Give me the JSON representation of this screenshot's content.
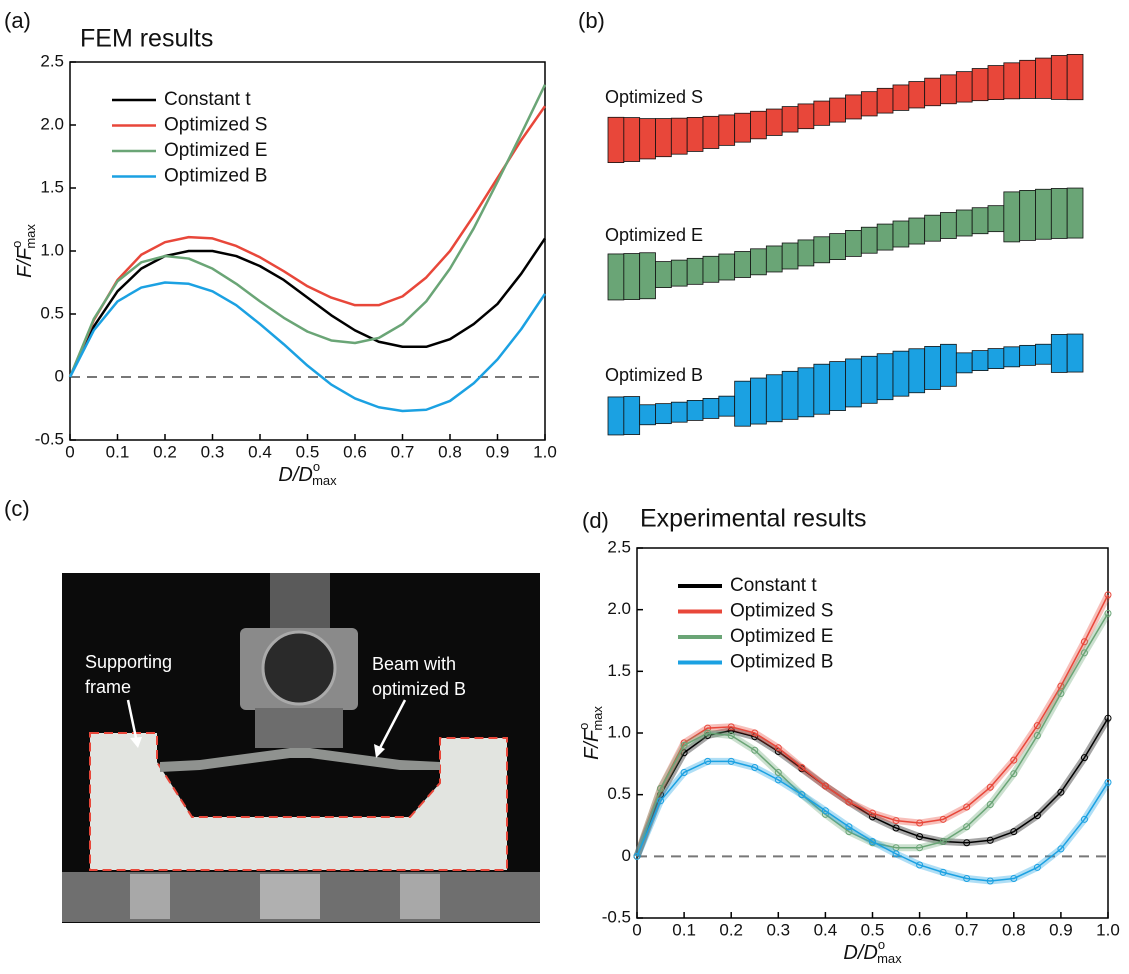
{
  "panels": {
    "labels": [
      "(a)",
      "(b)",
      "(c)",
      "(d)"
    ]
  },
  "beam_diagram": {
    "labels": [
      "Optimized S",
      "Optimized E",
      "Optimized B"
    ]
  },
  "photo": {
    "frame_label": [
      "Supporting",
      "frame"
    ],
    "beam_label": [
      "Beam with",
      "optimized B"
    ]
  },
  "chart_data": [
    {
      "type": "line",
      "title": "FEM results",
      "xlabel": {
        "main": "D/D",
        "sup": "o",
        "sub": "max"
      },
      "ylabel": {
        "main": "F/F",
        "sup": "o",
        "sub": "max"
      },
      "xlim": [
        0,
        1
      ],
      "ylim": [
        -0.5,
        2.5
      ],
      "xticks": [
        0,
        0.1,
        0.2,
        0.3,
        0.4,
        0.5,
        0.6,
        0.7,
        0.8,
        0.9,
        {
          "value": 1,
          "label": "1.0"
        }
      ],
      "yticks": [
        -0.5,
        0,
        0.5,
        {
          "value": 1,
          "label": "1.0"
        },
        1.5,
        {
          "value": 2,
          "label": "2.0"
        },
        2.5
      ],
      "x": [
        0,
        0.05,
        0.1,
        0.15,
        0.2,
        0.25,
        0.3,
        0.35,
        0.4,
        0.45,
        0.5,
        0.55,
        0.6,
        0.65,
        0.7,
        0.75,
        0.8,
        0.85,
        0.9,
        0.95,
        1
      ],
      "series": [
        {
          "name": "Constant t",
          "color": "#000000",
          "values": [
            0,
            0.4,
            0.68,
            0.86,
            0.96,
            1.0,
            1.0,
            0.96,
            0.88,
            0.77,
            0.63,
            0.49,
            0.37,
            0.28,
            0.24,
            0.24,
            0.3,
            0.42,
            0.58,
            0.82,
            1.1
          ]
        },
        {
          "name": "Optimized S",
          "color": "#e8473a",
          "values": [
            0,
            0.45,
            0.77,
            0.97,
            1.07,
            1.11,
            1.1,
            1.04,
            0.95,
            0.84,
            0.72,
            0.63,
            0.57,
            0.57,
            0.64,
            0.79,
            1.0,
            1.28,
            1.58,
            1.88,
            2.15
          ]
        },
        {
          "name": "Optimized E",
          "color": "#6aa576",
          "values": [
            0,
            0.46,
            0.76,
            0.91,
            0.96,
            0.94,
            0.86,
            0.74,
            0.6,
            0.47,
            0.36,
            0.29,
            0.27,
            0.31,
            0.42,
            0.6,
            0.86,
            1.18,
            1.55,
            1.93,
            2.32
          ]
        },
        {
          "name": "Optimized B",
          "color": "#1ba1e2",
          "values": [
            0,
            0.37,
            0.6,
            0.71,
            0.75,
            0.74,
            0.68,
            0.57,
            0.42,
            0.26,
            0.09,
            -0.06,
            -0.17,
            -0.24,
            -0.27,
            -0.26,
            -0.19,
            -0.05,
            0.14,
            0.38,
            0.66
          ]
        }
      ]
    },
    {
      "type": "line",
      "title": "Experimental results",
      "markers": true,
      "xlabel": {
        "main": "D/D",
        "sup": "o",
        "sub": "max"
      },
      "ylabel": {
        "main": "F/F",
        "sup": "o",
        "sub": "max"
      },
      "xlim": [
        0,
        1
      ],
      "ylim": [
        -0.5,
        2.5
      ],
      "xticks": [
        0,
        0.1,
        0.2,
        0.3,
        0.4,
        0.5,
        0.6,
        0.7,
        0.8,
        0.9,
        {
          "value": 1,
          "label": "1.0"
        }
      ],
      "yticks": [
        -0.5,
        0,
        0.5,
        {
          "value": 1,
          "label": "1.0"
        },
        1.5,
        {
          "value": 2,
          "label": "2.0"
        },
        2.5
      ],
      "x": [
        0,
        0.05,
        0.1,
        0.15,
        0.2,
        0.25,
        0.3,
        0.35,
        0.4,
        0.45,
        0.5,
        0.55,
        0.6,
        0.65,
        0.7,
        0.75,
        0.8,
        0.85,
        0.9,
        0.95,
        1
      ],
      "series": [
        {
          "name": "Constant t",
          "color": "#000000",
          "values": [
            0,
            0.5,
            0.84,
            0.98,
            1.02,
            0.97,
            0.85,
            0.71,
            0.57,
            0.44,
            0.32,
            0.23,
            0.16,
            0.12,
            0.11,
            0.13,
            0.2,
            0.33,
            0.52,
            0.8,
            1.12
          ]
        },
        {
          "name": "Optimized S",
          "color": "#e8473a",
          "values": [
            0,
            0.55,
            0.92,
            1.04,
            1.05,
            1.0,
            0.88,
            0.72,
            0.57,
            0.44,
            0.35,
            0.29,
            0.27,
            0.3,
            0.4,
            0.56,
            0.78,
            1.06,
            1.38,
            1.74,
            2.12
          ]
        },
        {
          "name": "Optimized E",
          "color": "#6aa576",
          "values": [
            0,
            0.55,
            0.9,
            1.0,
            0.98,
            0.86,
            0.68,
            0.5,
            0.34,
            0.2,
            0.11,
            0.07,
            0.07,
            0.12,
            0.24,
            0.42,
            0.67,
            0.98,
            1.32,
            1.65,
            1.97
          ]
        },
        {
          "name": "Optimized B",
          "color": "#1ba1e2",
          "values": [
            0,
            0.45,
            0.68,
            0.77,
            0.77,
            0.72,
            0.62,
            0.5,
            0.37,
            0.24,
            0.12,
            0.02,
            -0.07,
            -0.13,
            -0.18,
            -0.2,
            -0.18,
            -0.09,
            0.06,
            0.3,
            0.6
          ]
        }
      ]
    }
  ]
}
